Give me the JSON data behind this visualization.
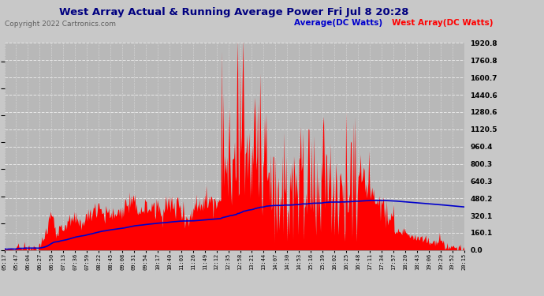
{
  "title": "West Array Actual & Running Average Power Fri Jul 8 20:28",
  "copyright": "Copyright 2022 Cartronics.com",
  "legend_avg": "Average(DC Watts)",
  "legend_west": "West Array(DC Watts)",
  "ylabel_right_ticks": [
    0.0,
    160.1,
    320.1,
    480.2,
    640.3,
    800.3,
    960.4,
    1120.5,
    1280.6,
    1440.6,
    1600.7,
    1760.8,
    1920.8
  ],
  "ymax": 1920.8,
  "bg_color": "#c8c8c8",
  "plot_bg_color": "#b8b8b8",
  "grid_color": "#e8e8e8",
  "bar_color": "#ff0000",
  "avg_color": "#0000cc",
  "title_color": "#000080",
  "copyright_color": "#606060",
  "xtick_labels": [
    "05:17",
    "05:47",
    "06:04",
    "06:27",
    "06:50",
    "07:13",
    "07:36",
    "07:59",
    "08:22",
    "08:45",
    "09:08",
    "09:31",
    "09:54",
    "10:17",
    "10:40",
    "11:03",
    "11:26",
    "11:49",
    "12:12",
    "12:35",
    "12:58",
    "13:21",
    "13:44",
    "14:07",
    "14:30",
    "14:53",
    "15:16",
    "15:39",
    "16:02",
    "16:25",
    "16:48",
    "17:11",
    "17:34",
    "17:57",
    "18:20",
    "18:43",
    "19:06",
    "19:29",
    "19:52",
    "20:15"
  ]
}
